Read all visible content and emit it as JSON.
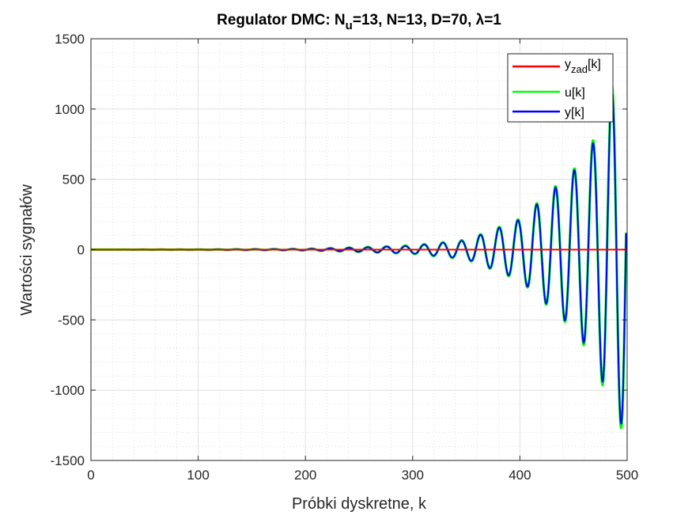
{
  "chart_data": {
    "type": "line",
    "title": {
      "prefix": "Regulator DMC: N",
      "sub": "u",
      "suffix": "=13, N=13, D=70, λ=1"
    },
    "xlabel": "Próbki dyskretne, k",
    "ylabel": "Wartości sygnałów",
    "xlim": [
      0,
      500
    ],
    "ylim": [
      -1500,
      1500
    ],
    "xticks": [
      0,
      100,
      200,
      300,
      400,
      500
    ],
    "yticks": [
      -1500,
      -1000,
      -500,
      0,
      500,
      1000,
      1500
    ],
    "grid": true,
    "minor_grid": true,
    "legend_position": "top-right",
    "legend": [
      {
        "base": "y",
        "sub": "zad",
        "suffix": "[k]"
      },
      {
        "base": "u[k]",
        "sub": "",
        "suffix": ""
      },
      {
        "base": "y[k]",
        "sub": "",
        "suffix": ""
      }
    ],
    "oscillation_period": 17.5,
    "series": [
      {
        "name": "y_zad[k]",
        "color": "#ff0000",
        "x": [
          0,
          500
        ],
        "y": [
          0,
          0
        ]
      },
      {
        "name": "u[k]",
        "color": "#00ff00",
        "envelope": {
          "x": [
            0,
            100,
            200,
            250,
            300,
            350,
            400,
            450,
            470,
            490,
            499
          ],
          "amplitude": [
            0,
            1,
            5,
            16,
            30,
            70,
            220,
            570,
            800,
            1270,
            1270
          ]
        }
      },
      {
        "name": "y[k]",
        "color": "#0000ff",
        "envelope": {
          "x": [
            0,
            100,
            200,
            250,
            300,
            350,
            400,
            450,
            470,
            490,
            499
          ],
          "amplitude": [
            0,
            1,
            5,
            15,
            28,
            66,
            215,
            560,
            780,
            1240,
            1240
          ]
        }
      }
    ]
  }
}
